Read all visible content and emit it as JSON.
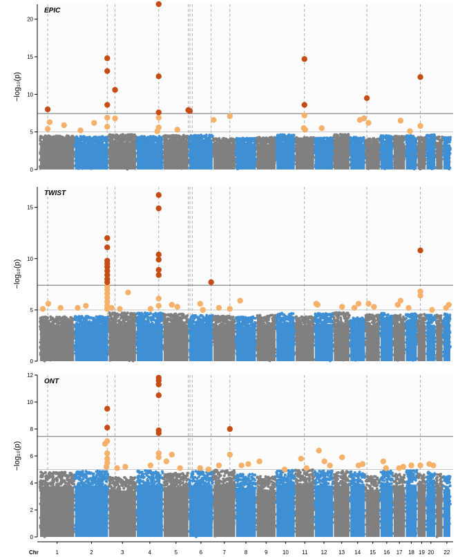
{
  "chart_data": {
    "type": "scatter",
    "subtype": "manhattan",
    "xlabel": "Chr",
    "ylabel": "−log₁₀(p)",
    "chromosomes": [
      "1",
      "2",
      "3",
      "4",
      "5",
      "6",
      "7",
      "8",
      "9",
      "10",
      "11",
      "12",
      "13",
      "14",
      "15",
      "16",
      "17",
      "18",
      "19",
      "20",
      "21",
      "22"
    ],
    "chromosome_tick_labels": [
      "1",
      "2",
      "3",
      "4",
      "5",
      "6",
      "7",
      "8",
      "9",
      "10",
      "11",
      "12",
      "13",
      "14",
      "15",
      "16",
      "17",
      "18",
      "19",
      "20",
      "22"
    ],
    "chromosome_lengths_mb": [
      249,
      242,
      198,
      190,
      181,
      171,
      159,
      145,
      138,
      134,
      135,
      133,
      114,
      107,
      102,
      90,
      83,
      80,
      59,
      64,
      47,
      51
    ],
    "colors": {
      "odd_chromosome": "#808080",
      "even_chromosome": "#3e8fd3",
      "suggestive_hit": "#f5b06a",
      "significant_hit": "#c44d16",
      "significance_line": "#707070",
      "suggestive_line": "#c8c8c8",
      "locus_line": "#a8a8a8"
    },
    "locus_lines": [
      {
        "chr": "1",
        "pos_mb": 56
      },
      {
        "chr": "2",
        "pos_mb": 236
      },
      {
        "chr": "3",
        "pos_mb": 45
      },
      {
        "chr": "4",
        "pos_mb": 160
      },
      {
        "chr": "5",
        "pos_mb": 180
      },
      {
        "chr": "6",
        "pos_mb": 5
      },
      {
        "chr": "6",
        "pos_mb": 22
      },
      {
        "chr": "6",
        "pos_mb": 160
      },
      {
        "chr": "7",
        "pos_mb": 120
      },
      {
        "chr": "11",
        "pos_mb": 65
      },
      {
        "chr": "15",
        "pos_mb": 8
      },
      {
        "chr": "19",
        "pos_mb": 20
      }
    ],
    "panels": [
      {
        "title": "EPIC",
        "ylim": [
          0,
          22
        ],
        "yticks": [
          0,
          5,
          10,
          15,
          20
        ],
        "significance_threshold": 7.45,
        "suggestive_threshold": 5.0,
        "background_ceiling": 4.6,
        "significant_hits": [
          {
            "chr": "1",
            "pos_mb": 56,
            "y": 8.0
          },
          {
            "chr": "2",
            "pos_mb": 236,
            "y": 14.8
          },
          {
            "chr": "2",
            "pos_mb": 236,
            "y": 13.1
          },
          {
            "chr": "2",
            "pos_mb": 236,
            "y": 8.6
          },
          {
            "chr": "3",
            "pos_mb": 45,
            "y": 10.6
          },
          {
            "chr": "4",
            "pos_mb": 160,
            "y": 22.0
          },
          {
            "chr": "4",
            "pos_mb": 160,
            "y": 12.4
          },
          {
            "chr": "4",
            "pos_mb": 160,
            "y": 7.6
          },
          {
            "chr": "5",
            "pos_mb": 180,
            "y": 7.9
          },
          {
            "chr": "6",
            "pos_mb": 5,
            "y": 7.8
          },
          {
            "chr": "11",
            "pos_mb": 65,
            "y": 14.7
          },
          {
            "chr": "11",
            "pos_mb": 65,
            "y": 8.6
          },
          {
            "chr": "15",
            "pos_mb": 8,
            "y": 9.5
          },
          {
            "chr": "19",
            "pos_mb": 20,
            "y": 12.3
          }
        ],
        "suggestive_hits": [
          {
            "chr": "1",
            "pos_mb": 56,
            "y": 5.4
          },
          {
            "chr": "1",
            "pos_mb": 70,
            "y": 6.3
          },
          {
            "chr": "1",
            "pos_mb": 175,
            "y": 5.9
          },
          {
            "chr": "2",
            "pos_mb": 40,
            "y": 5.2
          },
          {
            "chr": "2",
            "pos_mb": 140,
            "y": 6.2
          },
          {
            "chr": "2",
            "pos_mb": 236,
            "y": 6.9
          },
          {
            "chr": "2",
            "pos_mb": 236,
            "y": 5.7
          },
          {
            "chr": "3",
            "pos_mb": 45,
            "y": 6.8
          },
          {
            "chr": "4",
            "pos_mb": 150,
            "y": 5.1
          },
          {
            "chr": "4",
            "pos_mb": 160,
            "y": 6.9
          },
          {
            "chr": "4",
            "pos_mb": 160,
            "y": 5.6
          },
          {
            "chr": "5",
            "pos_mb": 100,
            "y": 5.3
          },
          {
            "chr": "7",
            "pos_mb": 2,
            "y": 6.6
          },
          {
            "chr": "7",
            "pos_mb": 120,
            "y": 7.1
          },
          {
            "chr": "11",
            "pos_mb": 65,
            "y": 7.2
          },
          {
            "chr": "11",
            "pos_mb": 60,
            "y": 5.5
          },
          {
            "chr": "11",
            "pos_mb": 70,
            "y": 5.3
          },
          {
            "chr": "12",
            "pos_mb": 50,
            "y": 5.5
          },
          {
            "chr": "14",
            "pos_mb": 70,
            "y": 6.6
          },
          {
            "chr": "14",
            "pos_mb": 100,
            "y": 6.8
          },
          {
            "chr": "15",
            "pos_mb": 20,
            "y": 6.2
          },
          {
            "chr": "17",
            "pos_mb": 50,
            "y": 6.5
          },
          {
            "chr": "18",
            "pos_mb": 30,
            "y": 5.1
          },
          {
            "chr": "19",
            "pos_mb": 20,
            "y": 5.8
          }
        ]
      },
      {
        "title": "TWIST",
        "ylim": [
          0,
          17
        ],
        "yticks": [
          0,
          5,
          10,
          15
        ],
        "significance_threshold": 7.4,
        "suggestive_threshold": 5.0,
        "background_ceiling": 4.7,
        "significant_hits": [
          {
            "chr": "2",
            "pos_mb": 236,
            "y": 12.0
          },
          {
            "chr": "2",
            "pos_mb": 236,
            "y": 11.1
          },
          {
            "chr": "2",
            "pos_mb": 236,
            "y": 9.8
          },
          {
            "chr": "2",
            "pos_mb": 236,
            "y": 9.5
          },
          {
            "chr": "2",
            "pos_mb": 236,
            "y": 9.2
          },
          {
            "chr": "2",
            "pos_mb": 236,
            "y": 8.8
          },
          {
            "chr": "2",
            "pos_mb": 236,
            "y": 8.4
          },
          {
            "chr": "2",
            "pos_mb": 236,
            "y": 8.0
          },
          {
            "chr": "2",
            "pos_mb": 236,
            "y": 7.7
          },
          {
            "chr": "4",
            "pos_mb": 160,
            "y": 16.2
          },
          {
            "chr": "4",
            "pos_mb": 160,
            "y": 14.9
          },
          {
            "chr": "4",
            "pos_mb": 160,
            "y": 10.4
          },
          {
            "chr": "4",
            "pos_mb": 160,
            "y": 9.9
          },
          {
            "chr": "4",
            "pos_mb": 160,
            "y": 8.9
          },
          {
            "chr": "4",
            "pos_mb": 160,
            "y": 8.4
          },
          {
            "chr": "6",
            "pos_mb": 160,
            "y": 7.7
          },
          {
            "chr": "19",
            "pos_mb": 20,
            "y": 10.8
          }
        ],
        "suggestive_hits": [
          {
            "chr": "1",
            "pos_mb": 20,
            "y": 5.1
          },
          {
            "chr": "1",
            "pos_mb": 60,
            "y": 5.6
          },
          {
            "chr": "1",
            "pos_mb": 150,
            "y": 5.2
          },
          {
            "chr": "2",
            "pos_mb": 20,
            "y": 5.2
          },
          {
            "chr": "2",
            "pos_mb": 80,
            "y": 5.4
          },
          {
            "chr": "2",
            "pos_mb": 236,
            "y": 7.3
          },
          {
            "chr": "2",
            "pos_mb": 236,
            "y": 7.0
          },
          {
            "chr": "2",
            "pos_mb": 236,
            "y": 6.6
          },
          {
            "chr": "2",
            "pos_mb": 236,
            "y": 6.2
          },
          {
            "chr": "2",
            "pos_mb": 236,
            "y": 5.8
          },
          {
            "chr": "2",
            "pos_mb": 236,
            "y": 5.4
          },
          {
            "chr": "2",
            "pos_mb": 236,
            "y": 5.1
          },
          {
            "chr": "3",
            "pos_mb": 20,
            "y": 5.2
          },
          {
            "chr": "3",
            "pos_mb": 80,
            "y": 5.1
          },
          {
            "chr": "3",
            "pos_mb": 140,
            "y": 6.7
          },
          {
            "chr": "4",
            "pos_mb": 100,
            "y": 5.1
          },
          {
            "chr": "4",
            "pos_mb": 160,
            "y": 6.1
          },
          {
            "chr": "4",
            "pos_mb": 160,
            "y": 5.4
          },
          {
            "chr": "5",
            "pos_mb": 60,
            "y": 5.5
          },
          {
            "chr": "5",
            "pos_mb": 100,
            "y": 5.3
          },
          {
            "chr": "6",
            "pos_mb": 80,
            "y": 5.6
          },
          {
            "chr": "6",
            "pos_mb": 100,
            "y": 5.0
          },
          {
            "chr": "7",
            "pos_mb": 40,
            "y": 5.2
          },
          {
            "chr": "7",
            "pos_mb": 120,
            "y": 5.1
          },
          {
            "chr": "8",
            "pos_mb": 30,
            "y": 5.9
          },
          {
            "chr": "12",
            "pos_mb": 10,
            "y": 5.6
          },
          {
            "chr": "12",
            "pos_mb": 20,
            "y": 5.5
          },
          {
            "chr": "13",
            "pos_mb": 60,
            "y": 5.3
          },
          {
            "chr": "14",
            "pos_mb": 30,
            "y": 5.2
          },
          {
            "chr": "14",
            "pos_mb": 60,
            "y": 5.6
          },
          {
            "chr": "15",
            "pos_mb": 20,
            "y": 5.6
          },
          {
            "chr": "15",
            "pos_mb": 60,
            "y": 5.3
          },
          {
            "chr": "17",
            "pos_mb": 30,
            "y": 5.5
          },
          {
            "chr": "17",
            "pos_mb": 50,
            "y": 5.9
          },
          {
            "chr": "18",
            "pos_mb": 20,
            "y": 5.2
          },
          {
            "chr": "19",
            "pos_mb": 20,
            "y": 6.8
          },
          {
            "chr": "19",
            "pos_mb": 20,
            "y": 6.4
          },
          {
            "chr": "20",
            "pos_mb": 40,
            "y": 5.0
          },
          {
            "chr": "22",
            "pos_mb": 20,
            "y": 5.2
          },
          {
            "chr": "22",
            "pos_mb": 40,
            "y": 5.5
          }
        ]
      },
      {
        "title": "ONT",
        "ylim": [
          0,
          12
        ],
        "yticks": [
          0,
          2,
          4,
          6,
          8,
          10,
          12
        ],
        "significance_threshold": 7.45,
        "suggestive_threshold": 5.0,
        "background_ceiling": 4.9,
        "significant_hits": [
          {
            "chr": "2",
            "pos_mb": 236,
            "y": 9.5
          },
          {
            "chr": "2",
            "pos_mb": 236,
            "y": 8.1
          },
          {
            "chr": "4",
            "pos_mb": 160,
            "y": 11.8
          },
          {
            "chr": "4",
            "pos_mb": 160,
            "y": 11.6
          },
          {
            "chr": "4",
            "pos_mb": 160,
            "y": 11.3
          },
          {
            "chr": "4",
            "pos_mb": 160,
            "y": 10.5
          },
          {
            "chr": "4",
            "pos_mb": 160,
            "y": 7.9
          },
          {
            "chr": "4",
            "pos_mb": 160,
            "y": 7.7
          },
          {
            "chr": "7",
            "pos_mb": 120,
            "y": 8.0
          }
        ],
        "suggestive_hits": [
          {
            "chr": "2",
            "pos_mb": 220,
            "y": 6.9
          },
          {
            "chr": "2",
            "pos_mb": 236,
            "y": 7.1
          },
          {
            "chr": "2",
            "pos_mb": 236,
            "y": 6.2
          },
          {
            "chr": "2",
            "pos_mb": 236,
            "y": 5.8
          },
          {
            "chr": "2",
            "pos_mb": 236,
            "y": 5.5
          },
          {
            "chr": "2",
            "pos_mb": 230,
            "y": 5.2
          },
          {
            "chr": "3",
            "pos_mb": 60,
            "y": 5.1
          },
          {
            "chr": "3",
            "pos_mb": 120,
            "y": 5.2
          },
          {
            "chr": "4",
            "pos_mb": 100,
            "y": 5.3
          },
          {
            "chr": "4",
            "pos_mb": 160,
            "y": 6.2
          },
          {
            "chr": "4",
            "pos_mb": 160,
            "y": 5.9
          },
          {
            "chr": "5",
            "pos_mb": 20,
            "y": 5.6
          },
          {
            "chr": "5",
            "pos_mb": 60,
            "y": 6.1
          },
          {
            "chr": "5",
            "pos_mb": 120,
            "y": 5.1
          },
          {
            "chr": "6",
            "pos_mb": 80,
            "y": 5.1
          },
          {
            "chr": "6",
            "pos_mb": 140,
            "y": 5.0
          },
          {
            "chr": "7",
            "pos_mb": 40,
            "y": 5.3
          },
          {
            "chr": "7",
            "pos_mb": 120,
            "y": 6.1
          },
          {
            "chr": "8",
            "pos_mb": 40,
            "y": 5.3
          },
          {
            "chr": "8",
            "pos_mb": 90,
            "y": 5.4
          },
          {
            "chr": "9",
            "pos_mb": 20,
            "y": 5.6
          },
          {
            "chr": "10",
            "pos_mb": 60,
            "y": 5.0
          },
          {
            "chr": "11",
            "pos_mb": 40,
            "y": 5.8
          },
          {
            "chr": "11",
            "pos_mb": 80,
            "y": 5.1
          },
          {
            "chr": "12",
            "pos_mb": 30,
            "y": 6.4
          },
          {
            "chr": "12",
            "pos_mb": 70,
            "y": 5.6
          },
          {
            "chr": "12",
            "pos_mb": 110,
            "y": 5.3
          },
          {
            "chr": "13",
            "pos_mb": 60,
            "y": 5.9
          },
          {
            "chr": "14",
            "pos_mb": 60,
            "y": 5.3
          },
          {
            "chr": "14",
            "pos_mb": 90,
            "y": 5.4
          },
          {
            "chr": "16",
            "pos_mb": 20,
            "y": 5.6
          },
          {
            "chr": "16",
            "pos_mb": 40,
            "y": 5.1
          },
          {
            "chr": "17",
            "pos_mb": 40,
            "y": 5.1
          },
          {
            "chr": "17",
            "pos_mb": 70,
            "y": 5.2
          },
          {
            "chr": "18",
            "pos_mb": 40,
            "y": 5.3
          },
          {
            "chr": "19",
            "pos_mb": 20,
            "y": 5.3
          },
          {
            "chr": "20",
            "pos_mb": 20,
            "y": 5.4
          },
          {
            "chr": "20",
            "pos_mb": 50,
            "y": 5.3
          }
        ]
      }
    ]
  }
}
